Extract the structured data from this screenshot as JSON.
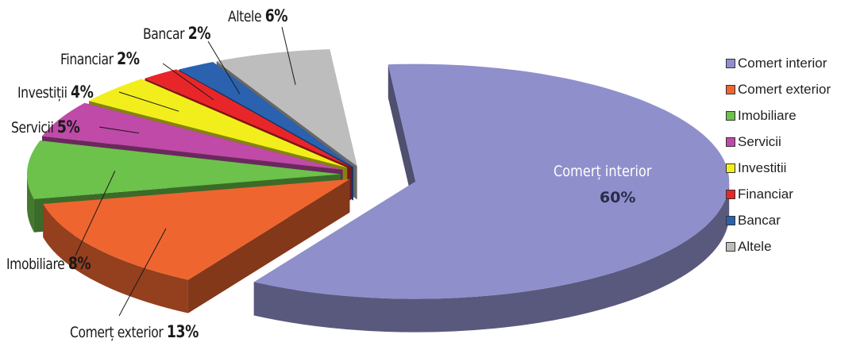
{
  "chart_data": {
    "type": "pie",
    "categories": [
      "Comert interior",
      "Comert exterior",
      "Imobiliare",
      "Servicii",
      "Investitii",
      "Financiar",
      "Bancar",
      "Altele"
    ],
    "values": [
      60,
      13,
      8,
      5,
      4,
      2,
      2,
      6
    ],
    "colors": [
      "#8f8fcc",
      "#ef6530",
      "#6cc24a",
      "#c04aa8",
      "#f2ee1c",
      "#e8262a",
      "#2a62b0",
      "#bdbdbd"
    ],
    "callouts": [
      {
        "name": "Comerț interior",
        "pct": "60%"
      },
      {
        "name": "Comerț exterior",
        "pct": "13%"
      },
      {
        "name": "Imobiliare",
        "pct": "8%"
      },
      {
        "name": "Servicii",
        "pct": "5%"
      },
      {
        "name": "Investiții",
        "pct": "4%"
      },
      {
        "name": "Financiar",
        "pct": "2%"
      },
      {
        "name": "Bancar",
        "pct": "2%"
      },
      {
        "name": "Altele",
        "pct": "6%"
      }
    ],
    "legend": [
      "Comert interior",
      "Comert exterior",
      "Imobiliare",
      "Servicii",
      "Investitii",
      "Financiar",
      "Bancar",
      "Altele"
    ],
    "legend_position": "right",
    "style": "3d-exploded"
  }
}
